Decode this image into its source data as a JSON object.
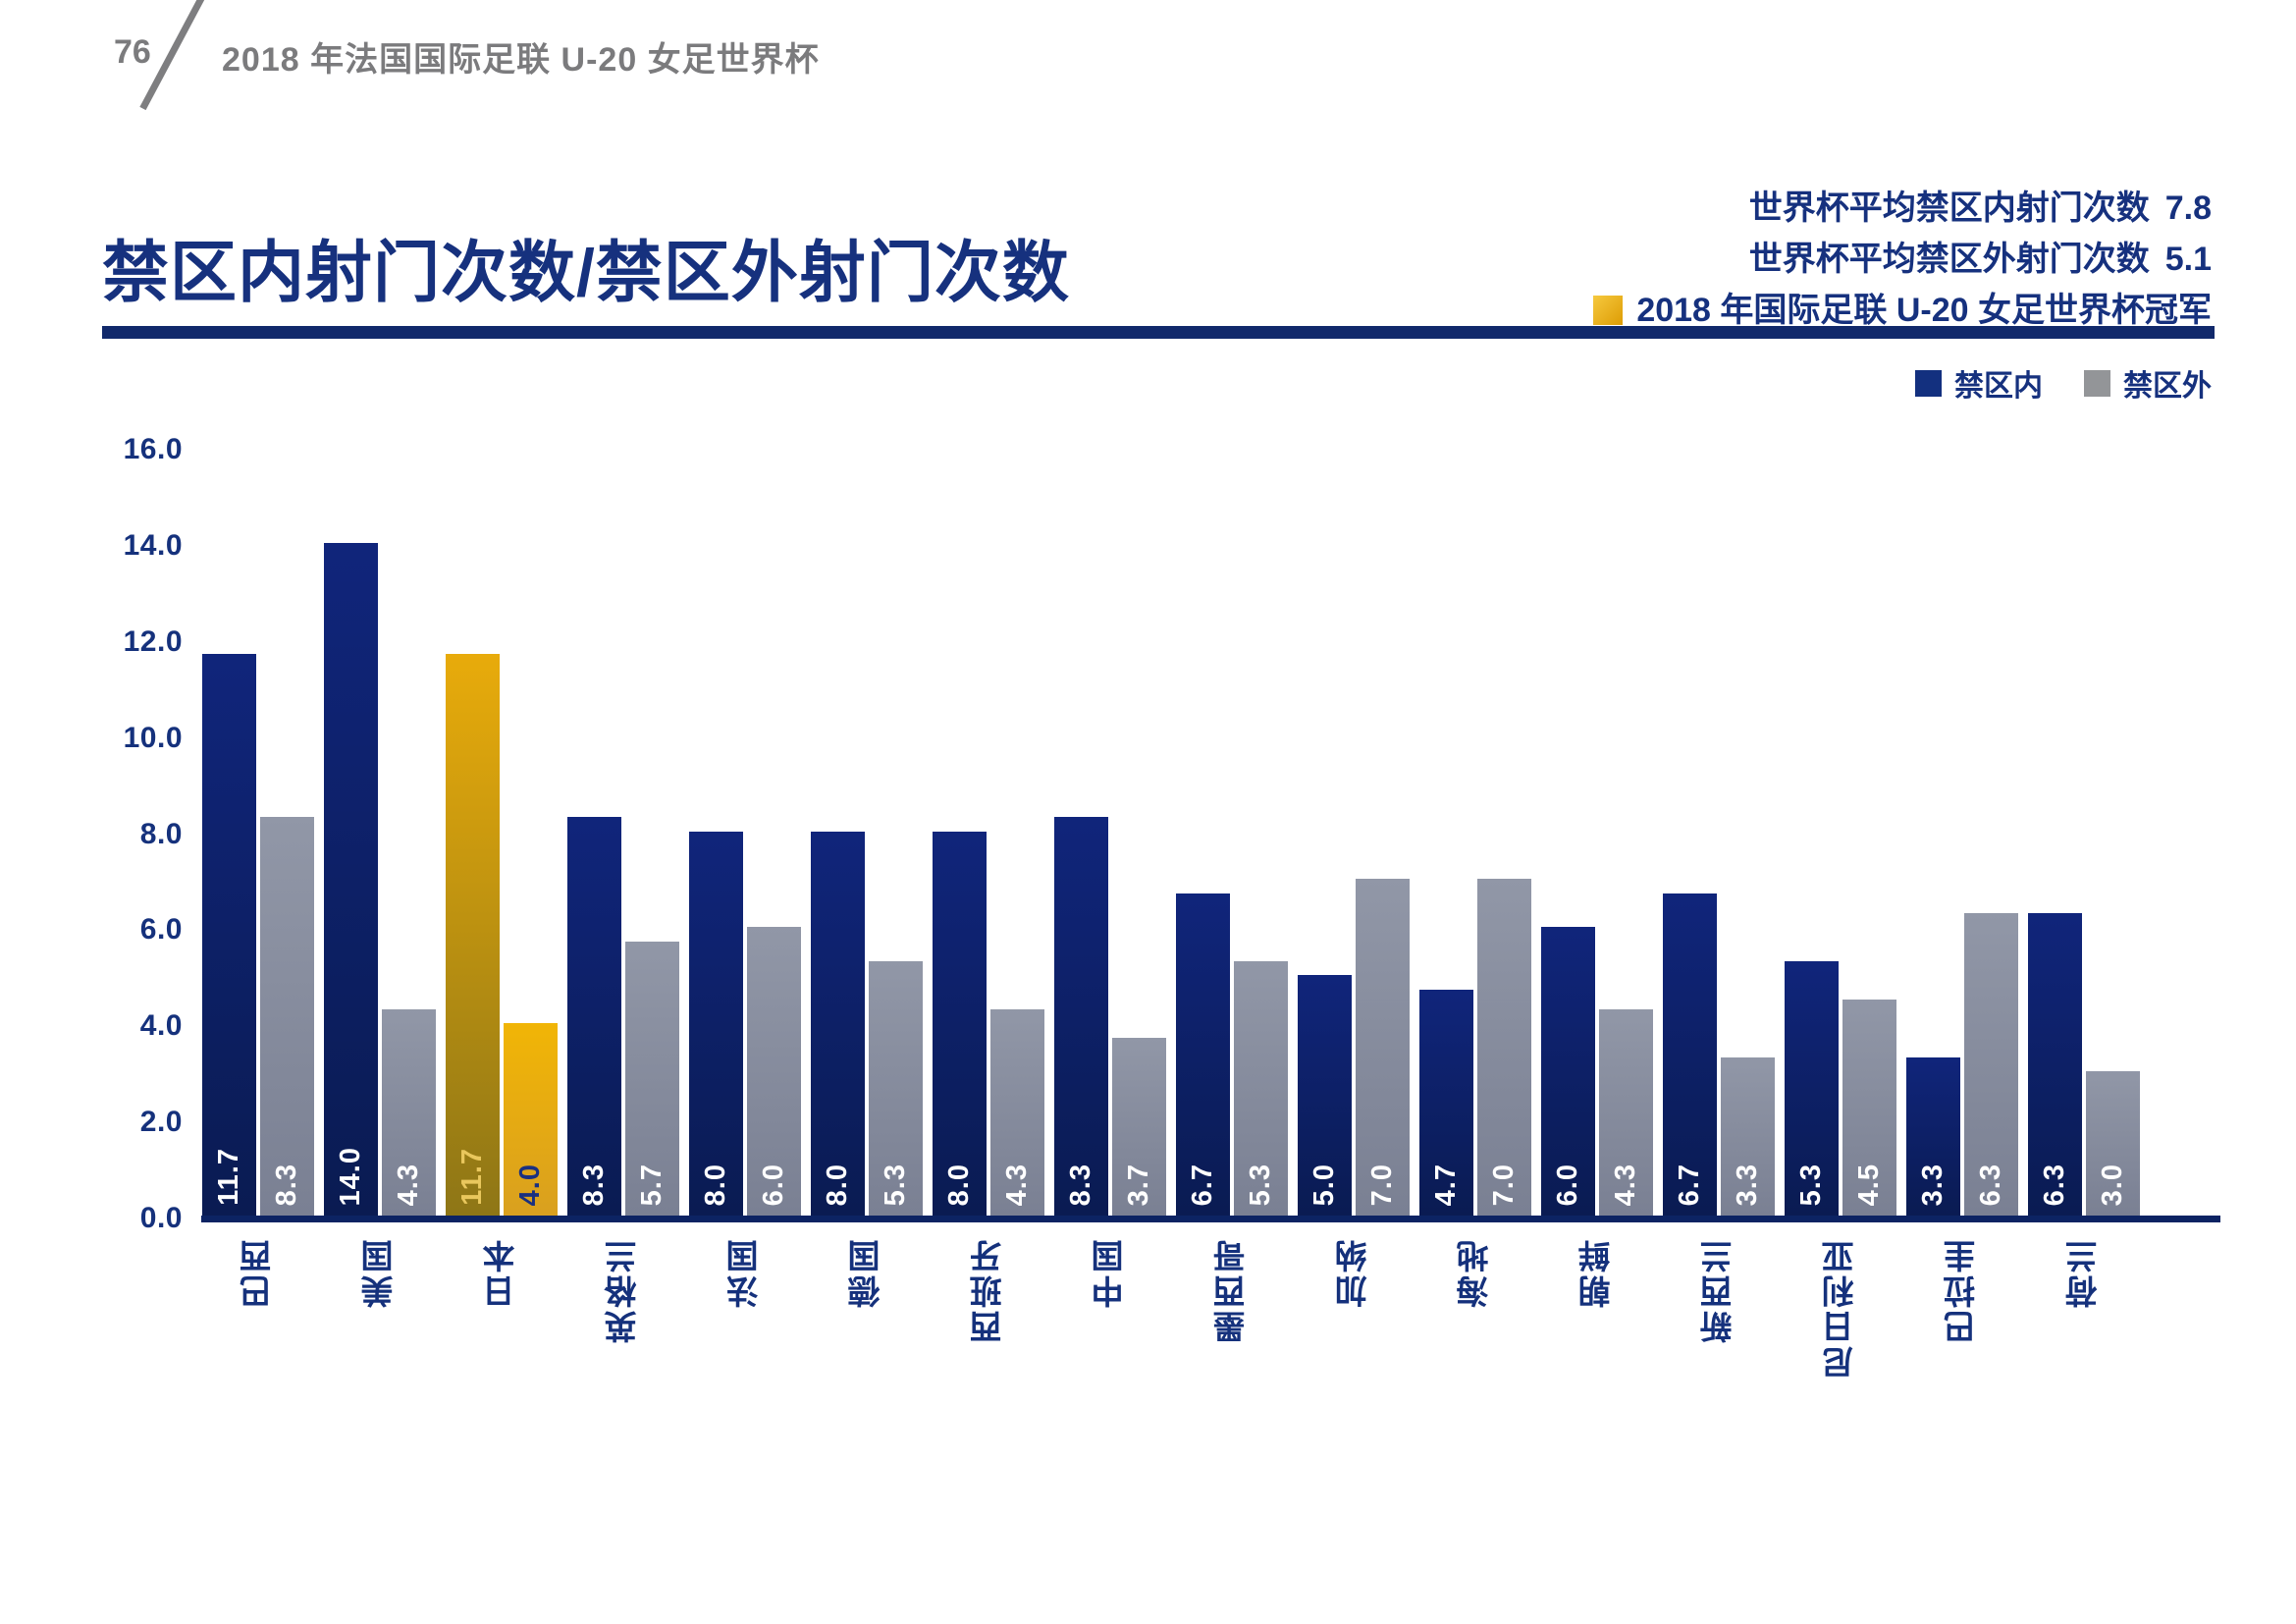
{
  "page_header": {
    "page_number": "76",
    "title": "2018 年法国国际足联 U-20 女足世界杯"
  },
  "chart_header": {
    "title": "禁区内射门次数/禁区外射门次数",
    "stats": [
      {
        "label": "世界杯平均禁区内射门次数",
        "value": "7.8"
      },
      {
        "label": "世界杯平均禁区外射门次数",
        "value": "5.1"
      }
    ],
    "champion_note": "2018 年国际足联 U-20 女足世界杯冠军"
  },
  "legend": {
    "inside_label": "禁区内",
    "outside_label": "禁区外"
  },
  "chart_data": {
    "type": "bar",
    "title": "禁区内射门次数/禁区外射门次数",
    "categories": [
      "巴西",
      "美国",
      "日本",
      "英格兰",
      "法国",
      "德国",
      "西班牙",
      "中国",
      "墨西哥",
      "加纳",
      "海地",
      "朝鲜",
      "新西兰",
      "尼日利亚",
      "巴拉圭",
      "荷兰"
    ],
    "series": [
      {
        "name": "禁区内",
        "values": [
          11.7,
          14.0,
          11.7,
          8.3,
          8.0,
          8.0,
          8.0,
          8.3,
          6.7,
          5.0,
          4.7,
          6.0,
          6.7,
          5.3,
          3.3,
          6.3
        ]
      },
      {
        "name": "禁区外",
        "values": [
          8.3,
          4.3,
          4.0,
          5.7,
          6.0,
          5.3,
          4.3,
          3.7,
          5.3,
          7.0,
          7.0,
          4.3,
          3.3,
          4.5,
          6.3,
          3.0
        ]
      }
    ],
    "highlight_category": "日本",
    "highlight_index": 2,
    "highlight_meaning": "2018 年国际足联 U-20 女足世界杯冠军",
    "world_cup_avg_inside": 7.8,
    "world_cup_avg_outside": 5.1,
    "ylim": [
      0,
      16
    ],
    "ytick_step": 2,
    "yticks": [
      "0.0",
      "2.0",
      "4.0",
      "6.0",
      "8.0",
      "10.0",
      "12.0",
      "14.0",
      "16.0"
    ],
    "grid": false,
    "legend_position": "top-right",
    "value_labels": "inside-bottom-rotated",
    "colors": {
      "inside_bar_top": "#10257b",
      "inside_bar_bottom": "#0a1b52",
      "outside_bar_top": "#9197a7",
      "outside_bar_bottom": "#7a8093",
      "highlight_inside_top": "#e8ab0b",
      "highlight_inside_bottom": "#8e7616",
      "highlight_outside_top": "#f1b506",
      "highlight_outside_bottom": "#d9a01f",
      "value_label": "#ffffff",
      "highlight_inside_value_label": "#e9c75d",
      "highlight_outside_value_label": "#1a3080",
      "legend_inside": "#13307f",
      "legend_outside": "#939598",
      "axis_text": "#15317c",
      "accent_navy": "#11296b",
      "accent_gold": "#eaaa0d",
      "header_gray": "#7b7b7d"
    }
  }
}
